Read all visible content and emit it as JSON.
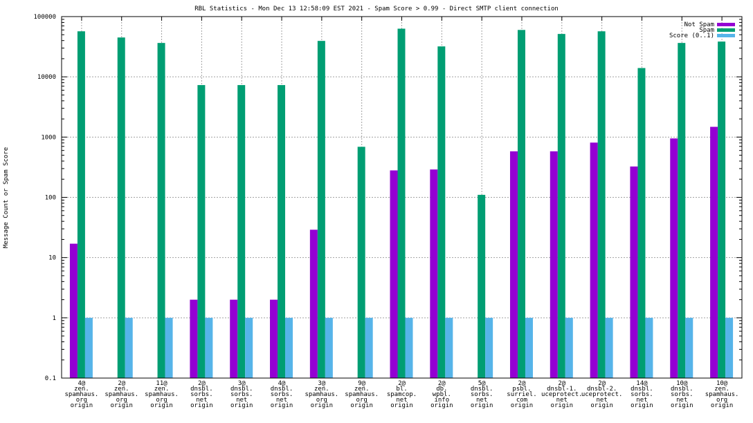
{
  "chart_data": {
    "type": "bar",
    "title": "RBL Statistics - Mon Dec 13 12:58:09 EST 2021 - Spam Score > 0.99 - Direct SMTP client connection",
    "xlabel": "",
    "ylabel": "Message Count or Spam Score",
    "yscale": "log",
    "ylim": [
      0.1,
      100000
    ],
    "yticks": [
      0.1,
      1,
      10,
      100,
      1000,
      10000,
      100000
    ],
    "ytick_labels": [
      "0.1",
      "1",
      "10",
      "100",
      "1000",
      "10000",
      "100000"
    ],
    "grid": true,
    "legend_position": "top-right",
    "categories": [
      [
        "4@",
        "zen.",
        "spamhaus.",
        "org",
        "origin"
      ],
      [
        "2@",
        "zen.",
        "spamhaus.",
        "org",
        "origin"
      ],
      [
        "11@",
        "zen.",
        "spamhaus.",
        "org",
        "origin"
      ],
      [
        "2@",
        "dnsbl.",
        "sorbs.",
        "net",
        "origin"
      ],
      [
        "3@",
        "dnsbl.",
        "sorbs.",
        "net",
        "origin"
      ],
      [
        "4@",
        "dnsbl.",
        "sorbs.",
        "net",
        "origin"
      ],
      [
        "3@",
        "zen.",
        "spamhaus.",
        "org",
        "origin"
      ],
      [
        "9@",
        "zen.",
        "spamhaus.",
        "org",
        "origin"
      ],
      [
        "2@",
        "bl.",
        "spamcop.",
        "net",
        "origin"
      ],
      [
        "2@",
        "db.",
        "wpbl.",
        "info",
        "origin"
      ],
      [
        "5@",
        "dnsbl.",
        "sorbs.",
        "net",
        "origin"
      ],
      [
        "2@",
        "psbl.",
        "surriel.",
        "com",
        "origin"
      ],
      [
        "2@",
        "dnsbl-1.",
        "uceprotect.",
        "net",
        "origin"
      ],
      [
        "2@",
        "dnsbl-2.",
        "uceprotect.",
        "net",
        "origin"
      ],
      [
        "14@",
        "dnsbl.",
        "sorbs.",
        "net",
        "origin"
      ],
      [
        "10@",
        "dnsbl.",
        "sorbs.",
        "net",
        "origin"
      ],
      [
        "10@",
        "zen.",
        "spamhaus.",
        "org",
        "origin"
      ]
    ],
    "series": [
      {
        "name": "Not Spam",
        "color": "#9400d3",
        "values": [
          17,
          null,
          null,
          2,
          2,
          2,
          29,
          null,
          280,
          290,
          null,
          580,
          580,
          810,
          325,
          950,
          1480
        ]
      },
      {
        "name": "Spam",
        "color": "#009e73",
        "values": [
          57000,
          45000,
          36500,
          7300,
          7300,
          7300,
          39500,
          690,
          63000,
          32000,
          110,
          60000,
          51500,
          57000,
          14000,
          36500,
          38500
        ]
      },
      {
        "name": "Score (0..1)",
        "color": "#56b4e9",
        "values": [
          1,
          1,
          1,
          1,
          1,
          1,
          1,
          1,
          1,
          1,
          1,
          1,
          1,
          1,
          1,
          1,
          1
        ]
      }
    ]
  }
}
